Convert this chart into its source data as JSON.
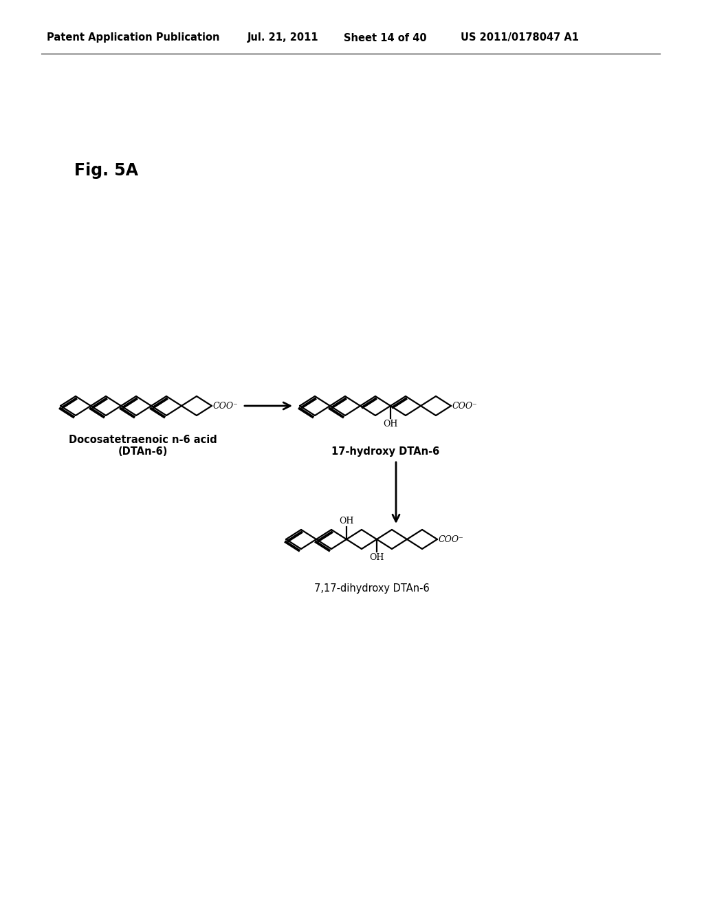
{
  "background_color": "#ffffff",
  "header_text": "Patent Application Publication",
  "header_date": "Jul. 21, 2011",
  "header_sheet": "Sheet 14 of 40",
  "header_patent": "US 2011/0178047 A1",
  "fig_label": "Fig. 5A",
  "molecule1_name_line1": "Docosatetraenoic n-6 acid",
  "molecule1_name_line2": "(DTAn-6)",
  "molecule2_name": "17-hydroxy DTAn-6",
  "molecule3_name": "7,17-dihydroxy DTAn-6",
  "line_color": "#000000",
  "text_color": "#000000",
  "font_size_header": 10.5,
  "font_size_fig": 17,
  "font_size_molecule": 10.5
}
